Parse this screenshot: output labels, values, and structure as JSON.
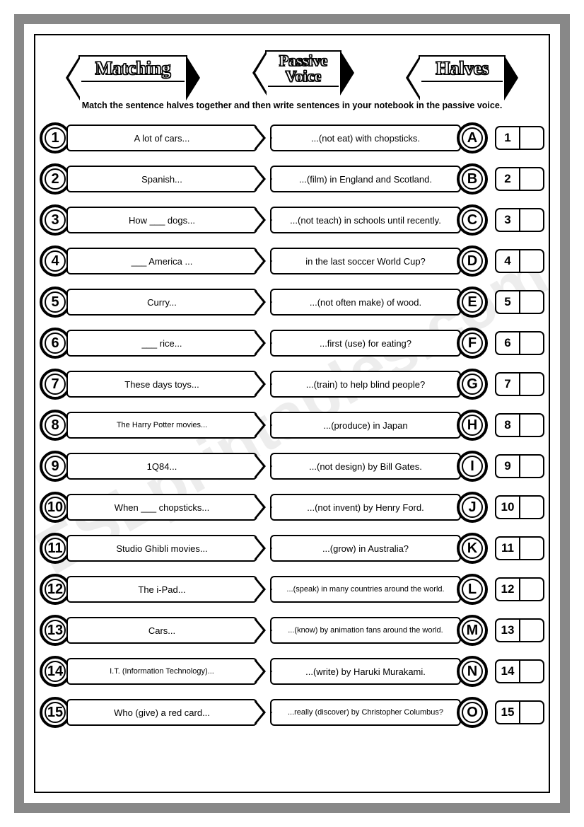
{
  "header": {
    "left": "Matching",
    "center_line1": "Passive",
    "center_line2": "Voice",
    "right": "Halves"
  },
  "instructions": "Match the sentence halves together and then write sentences in your notebook in the passive voice.",
  "watermark": "ESLprintables.com",
  "items": [
    {
      "n": "1",
      "left": "A lot of cars...",
      "right": "...(not eat) with chopsticks.",
      "l": "A"
    },
    {
      "n": "2",
      "left": "Spanish...",
      "right": "...(film) in England and Scotland.",
      "l": "B"
    },
    {
      "n": "3",
      "left": "How ___ dogs...",
      "right": "...(not teach) in schools until recently.",
      "l": "C"
    },
    {
      "n": "4",
      "left": "___ America ...",
      "right": "in the last soccer World Cup?",
      "l": "D"
    },
    {
      "n": "5",
      "left": "Curry...",
      "right": "...(not often make) of wood.",
      "l": "E"
    },
    {
      "n": "6",
      "left": "___ rice...",
      "right": "...first (use) for eating?",
      "l": "F"
    },
    {
      "n": "7",
      "left": "These days toys...",
      "right": "...(train) to help blind people?",
      "l": "G"
    },
    {
      "n": "8",
      "left": "The Harry Potter movies...",
      "right": "...(produce) in Japan",
      "l": "H",
      "smallL": true
    },
    {
      "n": "9",
      "left": "1Q84...",
      "right": "...(not design) by Bill Gates.",
      "l": "I"
    },
    {
      "n": "10",
      "left": "When ___ chopsticks...",
      "right": "...(not invent) by Henry Ford.",
      "l": "J"
    },
    {
      "n": "11",
      "left": "Studio Ghibli movies...",
      "right": "...(grow) in Australia?",
      "l": "K"
    },
    {
      "n": "12",
      "left": "The i-Pad...",
      "right": "...(speak) in many countries around the world.",
      "l": "L",
      "smallR": true
    },
    {
      "n": "13",
      "left": "Cars...",
      "right": "...(know) by animation fans around the world.",
      "l": "M",
      "smallR": true
    },
    {
      "n": "14",
      "left": "I.T. (Information Technology)...",
      "right": "...(write) by Haruki Murakami.",
      "l": "N",
      "smallL": true
    },
    {
      "n": "15",
      "left": "Who (give) a red card...",
      "right": "...really (discover) by Christopher Columbus?",
      "l": "O",
      "smallR": true
    }
  ]
}
